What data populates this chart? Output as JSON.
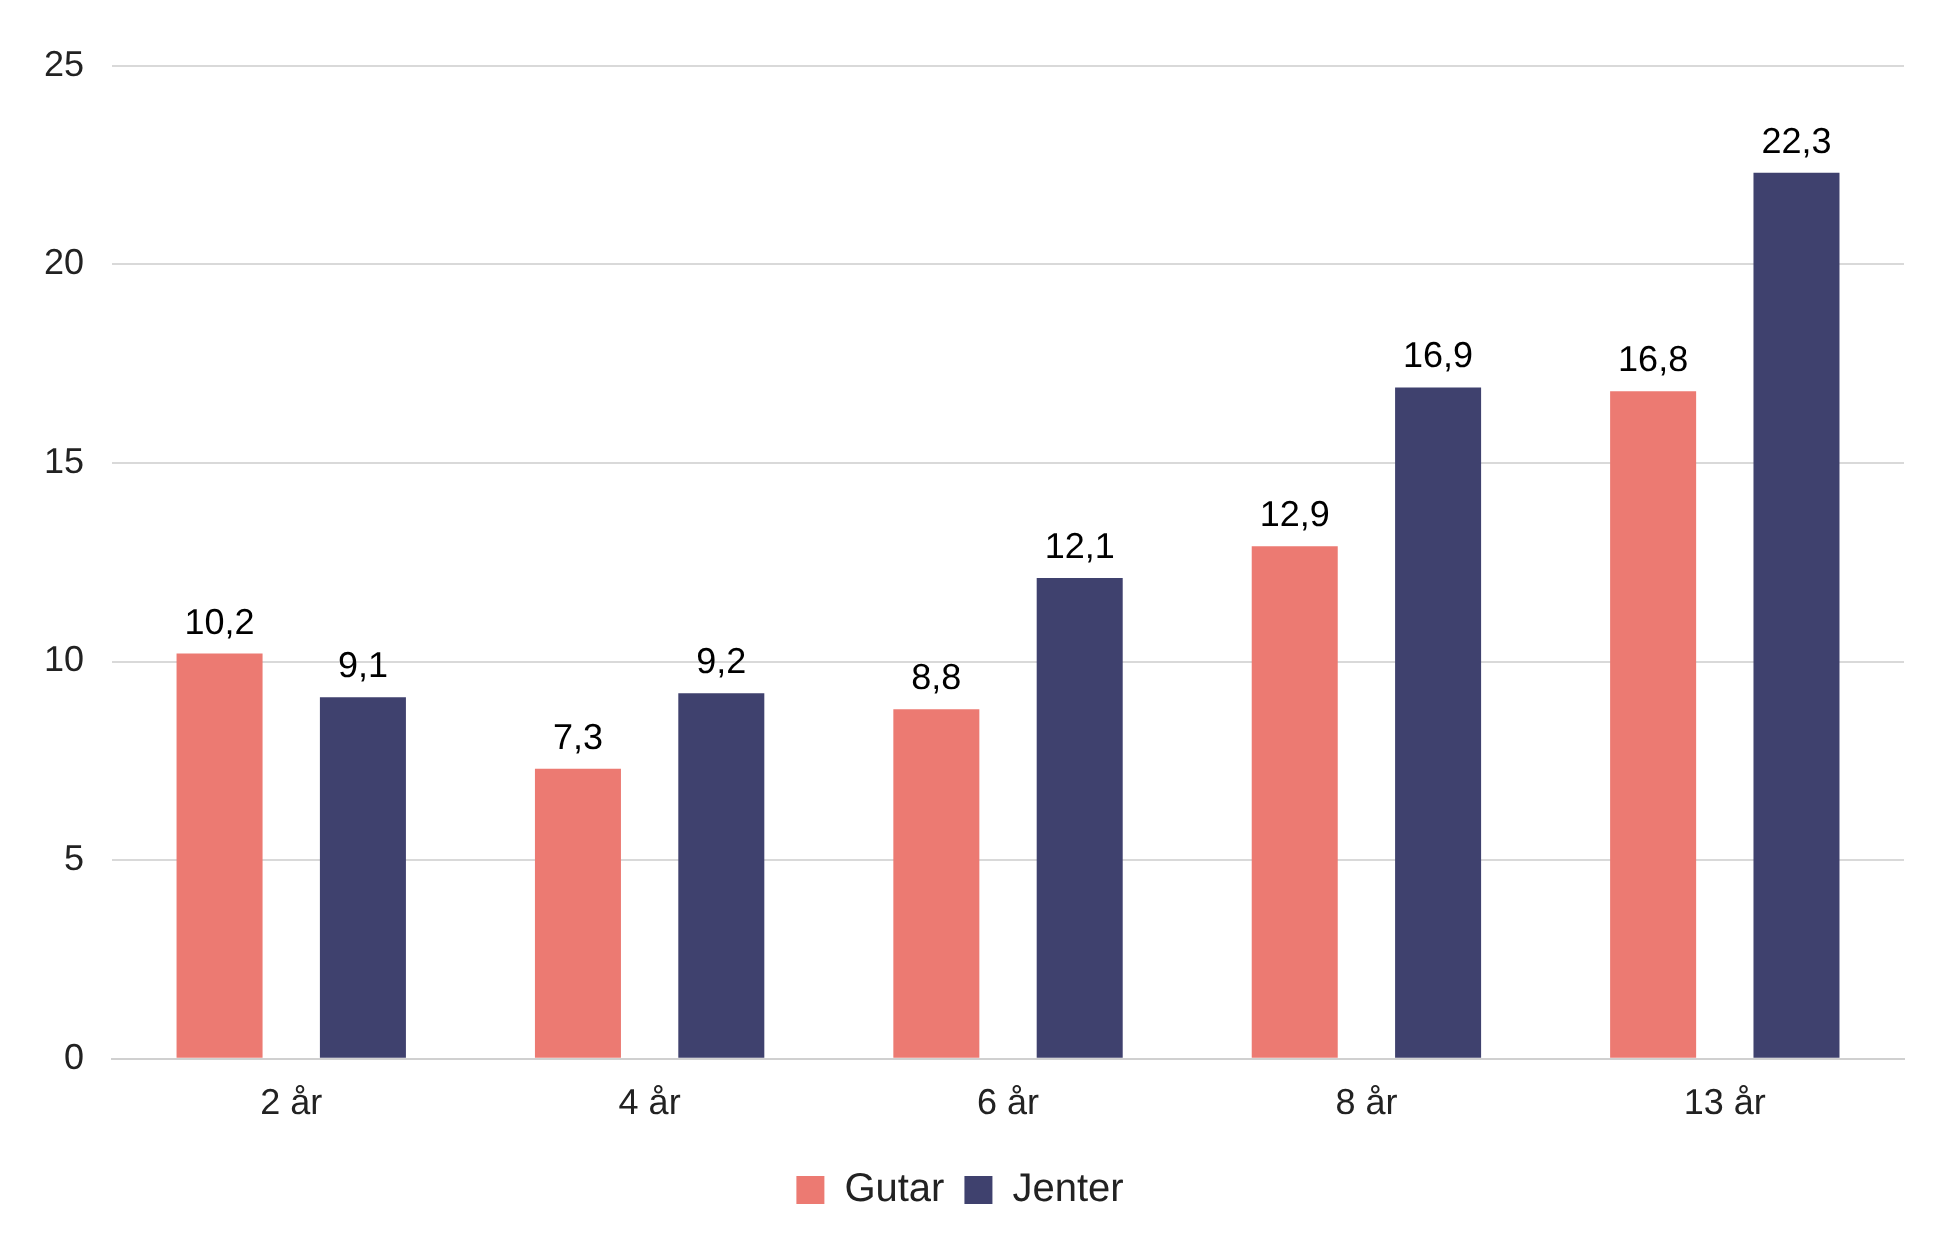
{
  "chart_data": {
    "type": "bar",
    "categories": [
      "2 år",
      "4 år",
      "6 år",
      "8 år",
      "13 år"
    ],
    "series": [
      {
        "name": "Gutar",
        "color": "#ec7a72",
        "values": [
          10.2,
          7.3,
          8.8,
          12.9,
          16.8
        ],
        "value_labels": [
          "10,2",
          "7,3",
          "8,8",
          "12,9",
          "16,8"
        ]
      },
      {
        "name": "Jenter",
        "color": "#3f416e",
        "values": [
          9.1,
          9.2,
          12.1,
          16.9,
          22.3
        ],
        "value_labels": [
          "9,1",
          "9,2",
          "12,1",
          "16,9",
          "22,3"
        ]
      }
    ],
    "ylim": [
      0,
      25
    ],
    "yticks": [
      0,
      5,
      10,
      15,
      20,
      25
    ],
    "grid": "y",
    "legend": "bottom"
  }
}
